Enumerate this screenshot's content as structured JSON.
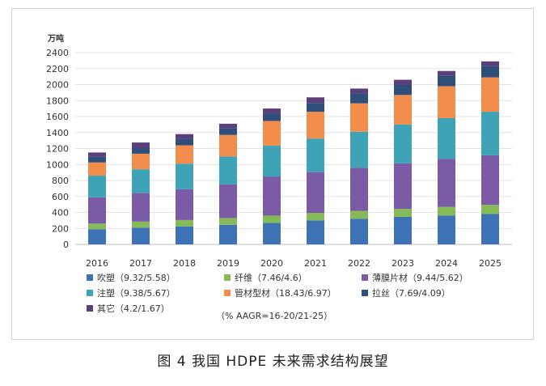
{
  "chart_data": {
    "type": "bar",
    "stacked": true,
    "unit_label": "万吨",
    "categories": [
      "2016",
      "2017",
      "2018",
      "2019",
      "2020",
      "2021",
      "2022",
      "2023",
      "2024",
      "2025"
    ],
    "ylim": [
      0,
      2400
    ],
    "yticks": [
      0,
      200,
      400,
      600,
      800,
      1000,
      1200,
      1400,
      1600,
      1800,
      2000,
      2200,
      2400
    ],
    "grid": "horizontal",
    "legend_position": "bottom",
    "series": [
      {
        "name": "吹塑（9.32/5.58）",
        "color": "#3d72b5",
        "values": [
          190,
          210,
          225,
          245,
          270,
          300,
          320,
          345,
          360,
          380
        ]
      },
      {
        "name": "纤维（7.46/4.6）",
        "color": "#86b957",
        "values": [
          70,
          75,
          80,
          85,
          90,
          95,
          100,
          100,
          110,
          115
        ]
      },
      {
        "name": "薄膜片材（9.44/5.62）",
        "color": "#7b5aa6",
        "values": [
          330,
          360,
          385,
          420,
          490,
          510,
          540,
          570,
          600,
          620
        ]
      },
      {
        "name": "注塑（9.38/5.67）",
        "color": "#3fa3b8",
        "values": [
          270,
          295,
          320,
          350,
          385,
          420,
          450,
          485,
          510,
          545
        ]
      },
      {
        "name": "管材型材（18.43/6.97）",
        "color": "#f28d4b",
        "values": [
          165,
          195,
          230,
          270,
          310,
          335,
          355,
          370,
          400,
          430
        ]
      },
      {
        "name": "拉丝（7.69/4.09）",
        "color": "#2f4f7a",
        "values": [
          70,
          70,
          85,
          85,
          95,
          110,
          125,
          125,
          135,
          145
        ]
      },
      {
        "name": "其它（4.2/1.67）",
        "color": "#5b3f7a",
        "values": [
          55,
          70,
          55,
          55,
          60,
          70,
          60,
          65,
          55,
          55
        ]
      }
    ],
    "note": "（% AAGR=16-20/21-25）"
  },
  "caption": "图 4  我国 HDPE 未来需求结构展望"
}
